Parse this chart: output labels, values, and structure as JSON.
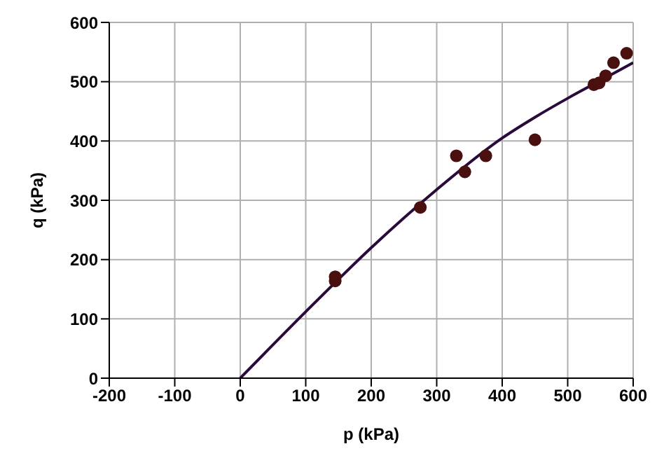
{
  "chart_data": {
    "type": "scatter",
    "xlabel": "p (kPa)",
    "ylabel": "q (kPa)",
    "xlim": [
      -200,
      600
    ],
    "xticks": [
      -200,
      -100,
      0,
      100,
      200,
      300,
      400,
      500,
      600
    ],
    "ylim": [
      0,
      600
    ],
    "yticks": [
      0,
      100,
      200,
      300,
      400,
      500,
      600
    ],
    "grid": true,
    "legend": false,
    "series": [
      {
        "color": "#4a0f0f",
        "marker": "circle",
        "x": [
          145,
          145,
          275,
          330,
          343,
          375,
          450,
          540,
          548,
          558,
          570,
          590
        ],
        "values": [
          164,
          171,
          288,
          375,
          348,
          375,
          402,
          495,
          498,
          510,
          532,
          548
        ]
      },
      {
        "type": "line",
        "color": "#2a0a3a",
        "marker": "none",
        "line_style": "solid",
        "x": [
          0,
          100,
          200,
          300,
          400,
          450,
          500,
          550,
          600
        ],
        "values": [
          0,
          112,
          220,
          318,
          405,
          440,
          472,
          502,
          532
        ]
      }
    ]
  }
}
